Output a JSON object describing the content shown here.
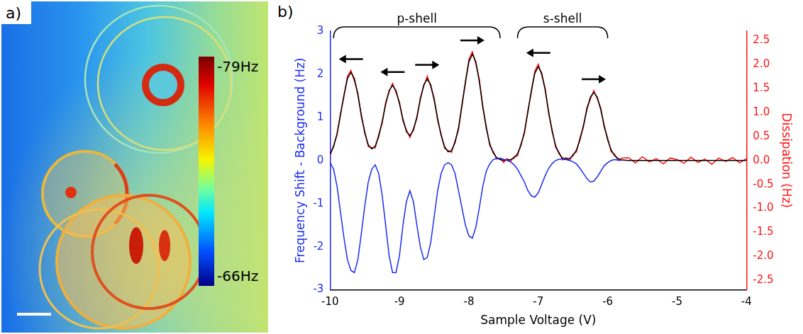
{
  "image_panel": {
    "panel_label": "a)",
    "colorbar": {
      "range": [
        -79,
        -66
      ],
      "ticks": [
        {
          "value": -79,
          "label": "-79Hz"
        },
        {
          "value": -66,
          "label": "-66Hz"
        }
      ]
    }
  },
  "chart_data": {
    "type": "line",
    "panel_label": "b)",
    "x_label": "Sample Voltage (V)",
    "y_label": "Frequency Shift - Background (Hz)",
    "y2_label": "Dissipation (Hz)",
    "xlim": [
      -10,
      -4
    ],
    "xticks": [
      -10,
      -9,
      -8,
      -7,
      -6,
      -5,
      -4
    ],
    "ylim": [
      -3,
      3
    ],
    "yticks": [
      -3,
      -2,
      -1,
      0,
      1,
      2,
      3
    ],
    "y2lim": [
      -2.7,
      2.7
    ],
    "y2ticks": [
      -2.5,
      {
        "value": -2,
        "label": "-2.0"
      },
      -1.5,
      {
        "value": -1,
        "label": "-1.0"
      },
      -0.5,
      {
        "value": 0,
        "label": "0.0"
      },
      0.5,
      {
        "value": 1,
        "label": "1.0"
      },
      1.5,
      {
        "value": 2,
        "label": "2.0"
      },
      2.5
    ],
    "grid": false,
    "annotations": [
      {
        "text": "p-shell",
        "x": [
          -9.95,
          -7.55
        ]
      },
      {
        "text": "s-shell",
        "x": [
          -7.3,
          -6.0
        ]
      }
    ],
    "arrows": [
      {
        "x": -9.7,
        "direction": "left"
      },
      {
        "x": -9.1,
        "direction": "left"
      },
      {
        "x": -8.6,
        "direction": "right"
      },
      {
        "x": -7.95,
        "direction": "right"
      },
      {
        "x": -7,
        "direction": "left"
      },
      {
        "x": -6.2,
        "direction": "right"
      }
    ],
    "x": [
      -10,
      -9.95,
      -9.9,
      -9.85,
      -9.8,
      -9.75,
      -9.7,
      -9.65,
      -9.6,
      -9.55,
      -9.5,
      -9.45,
      -9.4,
      -9.35,
      -9.3,
      -9.25,
      -9.2,
      -9.15,
      -9.1,
      -9.05,
      -9,
      -8.95,
      -8.9,
      -8.85,
      -8.8,
      -8.75,
      -8.7,
      -8.65,
      -8.6,
      -8.55,
      -8.5,
      -8.45,
      -8.4,
      -8.35,
      -8.3,
      -8.25,
      -8.2,
      -8.15,
      -8.1,
      -8.05,
      -8,
      -7.95,
      -7.9,
      -7.85,
      -7.8,
      -7.75,
      -7.7,
      -7.65,
      -7.6,
      -7.55,
      -7.5,
      -7.45,
      -7.4,
      -7.35,
      -7.3,
      -7.25,
      -7.2,
      -7.15,
      -7.1,
      -7.05,
      -7,
      -6.95,
      -6.9,
      -6.85,
      -6.8,
      -6.75,
      -6.7,
      -6.65,
      -6.6,
      -6.55,
      -6.5,
      -6.45,
      -6.4,
      -6.35,
      -6.3,
      -6.25,
      -6.2,
      -6.15,
      -6.1,
      -6.05,
      -6,
      -5.95,
      -5.9,
      -5.85,
      -5.8,
      -5.7,
      -5.6,
      -5.5,
      -5.4,
      -5.3,
      -5.2,
      -5.1,
      -5,
      -4.9,
      -4.8,
      -4.7,
      -4.6,
      -4.5,
      -4.4,
      -4.3,
      -4.2,
      -4.1,
      -4
    ],
    "series": [
      {
        "color": "#1a2cf0",
        "values": [
          -0.05,
          -0.2,
          -0.6,
          -1.2,
          -1.8,
          -2.3,
          -2.55,
          -2.6,
          -2.3,
          -1.7,
          -1.05,
          -0.5,
          -0.2,
          -0.1,
          -0.3,
          -0.8,
          -1.5,
          -2.2,
          -2.6,
          -2.6,
          -2.2,
          -1.5,
          -0.95,
          -0.7,
          -0.95,
          -1.5,
          -2.0,
          -2.3,
          -2.25,
          -1.9,
          -1.3,
          -0.7,
          -0.3,
          -0.1,
          -0.05,
          -0.1,
          -0.3,
          -0.7,
          -1.1,
          -1.5,
          -1.75,
          -1.8,
          -1.55,
          -1.1,
          -0.6,
          -0.25,
          -0.08,
          0.02,
          0.05,
          0.05,
          0.03,
          0.0,
          -0.03,
          -0.1,
          -0.2,
          -0.35,
          -0.5,
          -0.7,
          -0.82,
          -0.85,
          -0.75,
          -0.55,
          -0.35,
          -0.18,
          -0.07,
          0.0,
          0.03,
          0.03,
          0.02,
          0.0,
          -0.03,
          -0.08,
          -0.18,
          -0.3,
          -0.42,
          -0.5,
          -0.48,
          -0.38,
          -0.25,
          -0.12,
          -0.05,
          0.0,
          0.02,
          0.01,
          0.0,
          null,
          null,
          null,
          null,
          null,
          null,
          null,
          null,
          null,
          null,
          null,
          null,
          null,
          null,
          null,
          null,
          null,
          null
        ]
      },
      {
        "color": "#000000",
        "axis": "y2",
        "values": [
          0.13,
          0.29,
          0.56,
          0.95,
          1.37,
          1.71,
          1.84,
          1.71,
          1.37,
          0.95,
          0.57,
          0.33,
          0.24,
          0.3,
          0.5,
          0.81,
          1.17,
          1.46,
          1.57,
          1.46,
          1.18,
          0.86,
          0.6,
          0.52,
          0.63,
          0.91,
          1.27,
          1.58,
          1.7,
          1.58,
          1.26,
          0.87,
          0.52,
          0.29,
          0.18,
          0.21,
          0.37,
          0.68,
          1.14,
          1.65,
          2.06,
          2.22,
          2.06,
          1.65,
          1.14,
          0.68,
          0.35,
          0.16,
          0.06,
          0.02,
          0.0,
          0.01,
          0.02,
          0.05,
          0.14,
          0.31,
          0.6,
          1.01,
          1.46,
          1.82,
          1.96,
          1.82,
          1.46,
          1.01,
          0.6,
          0.31,
          0.14,
          0.05,
          0.03,
          0.04,
          0.1,
          0.22,
          0.43,
          0.73,
          1.06,
          1.32,
          1.42,
          1.32,
          1.06,
          0.73,
          0.43,
          0.22,
          0.1,
          0.04,
          0.01,
          0,
          0,
          0,
          0,
          0,
          0,
          0,
          0,
          0,
          0,
          0,
          0,
          0,
          0,
          0,
          0,
          0,
          0
        ]
      },
      {
        "color": "#ff1010",
        "axis": "y2",
        "values": [
          0.1,
          0.31,
          0.53,
          0.99,
          1.34,
          1.76,
          1.88,
          1.66,
          1.41,
          0.91,
          0.6,
          0.29,
          0.27,
          0.26,
          0.54,
          0.77,
          1.21,
          1.43,
          1.61,
          1.42,
          1.22,
          0.82,
          0.64,
          0.48,
          0.66,
          0.87,
          1.31,
          1.55,
          1.76,
          1.54,
          1.3,
          0.83,
          0.55,
          0.25,
          0.21,
          0.17,
          0.41,
          0.64,
          1.18,
          1.61,
          2.11,
          2.27,
          2.02,
          1.7,
          1.1,
          0.72,
          0.31,
          0.19,
          0.03,
          0.05,
          -0.04,
          0.04,
          -0.02,
          0.08,
          0.1,
          0.35,
          0.56,
          1.05,
          1.42,
          1.87,
          2.01,
          1.78,
          1.5,
          0.97,
          0.64,
          0.27,
          0.17,
          0.01,
          0.06,
          0.0,
          0.13,
          0.18,
          0.47,
          0.69,
          1.1,
          1.28,
          1.46,
          1.29,
          1.1,
          0.69,
          0.47,
          0.18,
          0.13,
          0.0,
          0.05,
          0.06,
          -0.05,
          0.08,
          -0.03,
          0.04,
          -0.07,
          0.05,
          0.02,
          -0.06,
          0.07,
          -0.04,
          0.03,
          -0.08,
          0.05,
          -0.02,
          0.06,
          -0.05,
          0.04
        ]
      }
    ]
  }
}
